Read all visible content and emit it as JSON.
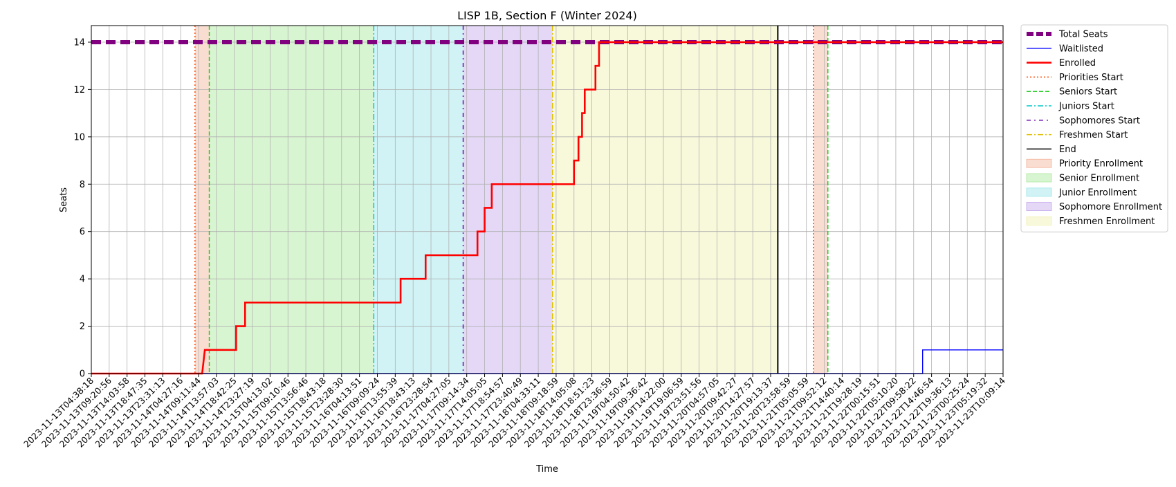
{
  "chart_data": {
    "type": "line",
    "title": "LISP 1B, Section F (Winter 2024)",
    "xlabel": "Time",
    "ylabel": "Seats",
    "ylim": [
      0,
      14.7
    ],
    "yticks": [
      0,
      2,
      4,
      6,
      8,
      10,
      12,
      14
    ],
    "grid": true,
    "legend_position": "outside-right",
    "x_categories": [
      "2023-11-13T04:38:18",
      "2023-11-13T09:20:56",
      "2023-11-13T14:03:58",
      "2023-11-13T18:47:35",
      "2023-11-13T23:31:13",
      "2023-11-14T04:27:16",
      "2023-11-14T09:11:44",
      "2023-11-14T13:57:03",
      "2023-11-14T18:42:25",
      "2023-11-14T23:27:19",
      "2023-11-15T04:13:02",
      "2023-11-15T09:10:46",
      "2023-11-15T13:56:46",
      "2023-11-15T18:43:18",
      "2023-11-15T23:28:30",
      "2023-11-16T04:13:51",
      "2023-11-16T09:09:24",
      "2023-11-16T13:55:39",
      "2023-11-16T18:43:13",
      "2023-11-16T23:28:54",
      "2023-11-17T04:27:05",
      "2023-11-17T09:14:34",
      "2023-11-17T14:05:05",
      "2023-11-17T18:54:57",
      "2023-11-17T23:40:49",
      "2023-11-18T04:33:11",
      "2023-11-18T09:18:59",
      "2023-11-18T14:05:08",
      "2023-11-18T18:51:23",
      "2023-11-18T23:36:59",
      "2023-11-19T04:50:42",
      "2023-11-19T09:36:42",
      "2023-11-19T14:22:00",
      "2023-11-19T19:06:59",
      "2023-11-19T23:51:56",
      "2023-11-20T04:57:05",
      "2023-11-20T09:42:27",
      "2023-11-20T14:27:57",
      "2023-11-20T19:13:37",
      "2023-11-20T23:58:59",
      "2023-11-21T05:05:59",
      "2023-11-21T09:52:12",
      "2023-11-21T14:40:14",
      "2023-11-21T19:28:19",
      "2023-11-22T00:15:51",
      "2023-11-22T05:10:20",
      "2023-11-22T09:58:22",
      "2023-11-22T14:46:54",
      "2023-11-22T19:36:13",
      "2023-11-23T00:25:24",
      "2023-11-23T05:19:32",
      "2023-11-23T10:09:14"
    ],
    "x_range_index": [
      0,
      51
    ],
    "series": [
      {
        "name": "Total Seats",
        "color": "#800080",
        "style": "dashed-thick",
        "points": [
          [
            0,
            14
          ],
          [
            51,
            14
          ]
        ]
      },
      {
        "name": "Waitlisted",
        "color": "#0000ff",
        "style": "solid-thin",
        "points": [
          [
            0,
            0
          ],
          [
            46.5,
            0
          ],
          [
            46.5,
            1
          ],
          [
            51,
            1
          ]
        ]
      },
      {
        "name": "Enrolled",
        "color": "#ff0000",
        "style": "solid-thick",
        "points": [
          [
            0,
            0
          ],
          [
            6.2,
            0
          ],
          [
            6.35,
            1
          ],
          [
            8.1,
            1
          ],
          [
            8.1,
            2
          ],
          [
            8.6,
            2
          ],
          [
            8.6,
            3
          ],
          [
            17.3,
            3
          ],
          [
            17.3,
            4
          ],
          [
            18.7,
            4
          ],
          [
            18.7,
            5
          ],
          [
            21.6,
            5
          ],
          [
            21.6,
            6
          ],
          [
            22.0,
            6
          ],
          [
            22.0,
            7
          ],
          [
            22.4,
            7
          ],
          [
            22.4,
            8
          ],
          [
            27.0,
            8
          ],
          [
            27.0,
            9
          ],
          [
            27.25,
            9
          ],
          [
            27.25,
            10
          ],
          [
            27.45,
            10
          ],
          [
            27.45,
            11
          ],
          [
            27.6,
            11
          ],
          [
            27.6,
            12
          ],
          [
            28.2,
            12
          ],
          [
            28.2,
            13
          ],
          [
            28.4,
            13
          ],
          [
            28.4,
            14
          ],
          [
            51,
            14
          ]
        ]
      }
    ],
    "vertical_lines": [
      {
        "name": "Priorities Start",
        "color": "#ff4500",
        "style": "dotted",
        "x": [
          5.8,
          40.4
        ]
      },
      {
        "name": "Seniors Start",
        "color": "#22cc22",
        "style": "dashed",
        "x": [
          6.6,
          41.2
        ]
      },
      {
        "name": "Juniors Start",
        "color": "#00c8c8",
        "style": "dashdot",
        "x": [
          15.8
        ]
      },
      {
        "name": "Sophomores Start",
        "color": "#6a0dad",
        "style": "dashdot-sparse",
        "x": [
          20.8
        ]
      },
      {
        "name": "Freshmen Start",
        "color": "#e0c000",
        "style": "dashdot",
        "x": [
          25.8
        ]
      },
      {
        "name": "End",
        "color": "#000000",
        "style": "solid",
        "x": [
          38.4
        ]
      }
    ],
    "shaded_regions": [
      {
        "name": "Priority Enrollment",
        "color": "#f4b49a",
        "ranges": [
          [
            5.8,
            6.6
          ],
          [
            40.4,
            41.2
          ]
        ]
      },
      {
        "name": "Senior Enrollment",
        "color": "#a8e89a",
        "ranges": [
          [
            6.6,
            15.8
          ]
        ]
      },
      {
        "name": "Junior Enrollment",
        "color": "#9ae4e8",
        "ranges": [
          [
            15.8,
            20.8
          ]
        ]
      },
      {
        "name": "Sophomore Enrollment",
        "color": "#c4a8ec",
        "ranges": [
          [
            20.8,
            25.8
          ]
        ]
      },
      {
        "name": "Freshmen Enrollment",
        "color": "#f0f0b0",
        "ranges": [
          [
            25.8,
            38.4
          ]
        ]
      }
    ],
    "legend": [
      {
        "label": "Total Seats",
        "kind": "line",
        "ref": "Total Seats"
      },
      {
        "label": "Waitlisted",
        "kind": "line",
        "ref": "Waitlisted"
      },
      {
        "label": "Enrolled",
        "kind": "line",
        "ref": "Enrolled"
      },
      {
        "label": "Priorities Start",
        "kind": "vline",
        "ref": "Priorities Start"
      },
      {
        "label": "Seniors Start",
        "kind": "vline",
        "ref": "Seniors Start"
      },
      {
        "label": "Juniors Start",
        "kind": "vline",
        "ref": "Juniors Start"
      },
      {
        "label": "Sophomores Start",
        "kind": "vline",
        "ref": "Sophomores Start"
      },
      {
        "label": "Freshmen Start",
        "kind": "vline",
        "ref": "Freshmen Start"
      },
      {
        "label": "End",
        "kind": "vline",
        "ref": "End"
      },
      {
        "label": "Priority Enrollment",
        "kind": "patch",
        "ref": "Priority Enrollment"
      },
      {
        "label": "Senior Enrollment",
        "kind": "patch",
        "ref": "Senior Enrollment"
      },
      {
        "label": "Junior Enrollment",
        "kind": "patch",
        "ref": "Junior Enrollment"
      },
      {
        "label": "Sophomore Enrollment",
        "kind": "patch",
        "ref": "Sophomore Enrollment"
      },
      {
        "label": "Freshmen Enrollment",
        "kind": "patch",
        "ref": "Freshmen Enrollment"
      }
    ]
  }
}
